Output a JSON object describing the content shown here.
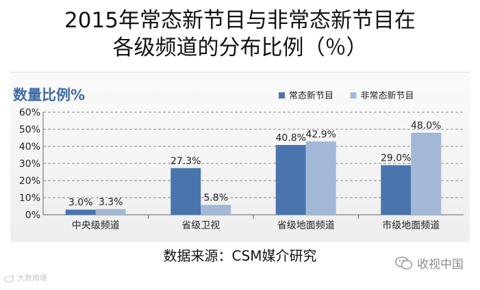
{
  "title_line1": "2015年常态新节目与非常态新节目在",
  "title_line2": "各级频道的分布比例（％）",
  "source": "数据来源：CSM媒介研究",
  "watermark": {
    "icon": "wechat-icon",
    "text": "收视中国"
  },
  "corner_watermark": {
    "icon": "weibo-icon",
    "text": "大数跨境"
  },
  "chart_data": {
    "type": "bar",
    "ylabel": "数量比例%",
    "categories": [
      "中央级频道",
      "省级卫视",
      "省级地面频道",
      "市级地面频道"
    ],
    "series": [
      {
        "name": "常态新节目",
        "color": "#4a74ad",
        "values": [
          3.0,
          27.3,
          40.8,
          29.0
        ],
        "labels": [
          "3.0%",
          "27.3%",
          "40.8%",
          "29.0%"
        ]
      },
      {
        "name": "非常态新节目",
        "color": "#a2b8d6",
        "values": [
          3.3,
          5.8,
          42.9,
          48.0
        ],
        "labels": [
          "3.3%",
          "5.8%",
          "42.9%",
          "48.0%"
        ]
      }
    ],
    "ylim": [
      0,
      60
    ],
    "yticks": [
      0,
      10,
      20,
      30,
      40,
      50,
      60
    ],
    "ytick_labels": [
      "0%",
      "10%",
      "20%",
      "30%",
      "40%",
      "50%",
      "60%"
    ],
    "grid": true,
    "legend": "top-right",
    "ylabel_color": "#3f6ba6"
  }
}
